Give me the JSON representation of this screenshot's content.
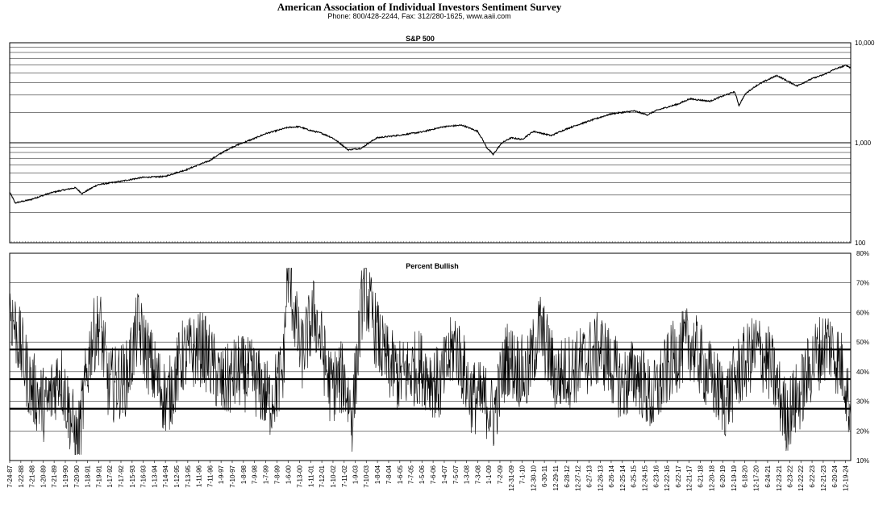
{
  "header": {
    "title": "American Association of Individual Investors Sentiment Survey",
    "subtitle": "Phone: 800/428-2244, Fax: 312/280-1625, www.aaii.com"
  },
  "chart_data": [
    {
      "type": "line",
      "title": "S&P 500",
      "yscale": "log",
      "ylim": [
        100,
        10000
      ],
      "ytick_labels": [
        "10,000",
        "1,000",
        "100"
      ],
      "ytick_values": [
        10000,
        1000,
        100
      ],
      "x_range": [
        "1987-07-24",
        "2025-03-13"
      ],
      "series": [
        {
          "name": "S&P 500",
          "x": [
            1987.56,
            1987.8,
            1988.5,
            1989.5,
            1990.5,
            1990.8,
            1991.5,
            1992.5,
            1993.5,
            1994.5,
            1995.5,
            1996.5,
            1997.5,
            1998.5,
            1999.0,
            1999.5,
            2000.0,
            2000.5,
            2001.0,
            2001.5,
            2002.0,
            2002.7,
            2003.3,
            2004.0,
            2005.0,
            2006.0,
            2007.0,
            2007.8,
            2008.5,
            2008.9,
            2009.2,
            2009.6,
            2010.0,
            2010.5,
            2011.0,
            2011.8,
            2012.5,
            2013.5,
            2014.5,
            2015.5,
            2016.1,
            2016.5,
            2017.5,
            2018.0,
            2018.9,
            2019.5,
            2020.0,
            2020.2,
            2020.5,
            2021.0,
            2021.9,
            2022.4,
            2022.8,
            2023.5,
            2024.0,
            2024.5,
            2025.0,
            2025.2
          ],
          "values": [
            320,
            250,
            270,
            320,
            355,
            310,
            380,
            410,
            450,
            460,
            540,
            660,
            900,
            1100,
            1230,
            1320,
            1420,
            1450,
            1330,
            1250,
            1120,
            850,
            880,
            1120,
            1190,
            1280,
            1450,
            1500,
            1300,
            900,
            760,
            1000,
            1120,
            1080,
            1300,
            1180,
            1380,
            1650,
            1950,
            2080,
            1900,
            2100,
            2450,
            2750,
            2600,
            2950,
            3230,
            2350,
            3100,
            3750,
            4700,
            4100,
            3700,
            4400,
            4800,
            5450,
            5950,
            5600
          ]
        }
      ]
    },
    {
      "type": "line",
      "title": "Percent Bullish",
      "ylim": [
        10,
        80
      ],
      "ytick_labels": [
        "80%",
        "70%",
        "60%",
        "50%",
        "40%",
        "30%",
        "20%",
        "10%"
      ],
      "ytick_values": [
        80,
        70,
        60,
        50,
        40,
        30,
        20,
        10
      ],
      "reference_lines": [
        {
          "name": "upper",
          "value": 47.5
        },
        {
          "name": "average",
          "value": 37.5
        },
        {
          "name": "lower",
          "value": 27.5
        }
      ],
      "x_tick_labels": [
        "7-24-87",
        "1-22-88",
        "7-21-88",
        "1-20-89",
        "7-21-89",
        "1-19-90",
        "7-20-90",
        "1-18-91",
        "7-19-91",
        "1-17-92",
        "7-17-92",
        "1-15-93",
        "7-16-93",
        "1-13-94",
        "7-14-94",
        "1-12-95",
        "7-13-95",
        "1-11-96",
        "7-11-96",
        "1-9-97",
        "7-10-97",
        "1-8-98",
        "7-9-98",
        "1-7-99",
        "7-8-99",
        "1-6-00",
        "7-13-00",
        "1-11-01",
        "7-12-01",
        "1-10-02",
        "7-11-02",
        "1-9-03",
        "7-10-03",
        "1-8-04",
        "7-8-04",
        "1-6-05",
        "7-7-05",
        "1-5-06",
        "7-6-06",
        "1-4-07",
        "7-5-07",
        "1-3-08",
        "7-3-08",
        "1-1-09",
        "7-2-09",
        "12-31-09",
        "7-1-10",
        "12-30-10",
        "6-30-11",
        "12-29-11",
        "6-28-12",
        "12-27-12",
        "6-27-13",
        "12-26-13",
        "6-26-14",
        "12-25-14",
        "6-25-15",
        "12-24-15",
        "6-23-16",
        "12-22-16",
        "6-22-17",
        "12-21-17",
        "6-21-18",
        "12-20-18",
        "6-20-19",
        "12-19-19",
        "6-18-20",
        "12-17-20",
        "6-24-21",
        "12-23-21",
        "6-23-22",
        "12-22-22",
        "6-22-23",
        "12-21-23",
        "6-20-24",
        "12-19-24"
      ],
      "x_tick_values": [
        1987.56,
        1988.06,
        1988.55,
        1989.05,
        1989.55,
        1990.05,
        1990.55,
        1991.05,
        1991.55,
        1992.04,
        1992.54,
        1993.04,
        1993.54,
        1994.03,
        1994.53,
        1995.03,
        1995.53,
        1996.03,
        1996.53,
        1997.02,
        1997.52,
        1998.02,
        1998.52,
        1999.02,
        1999.52,
        2000.02,
        2000.53,
        2001.03,
        2001.53,
        2002.03,
        2002.53,
        2003.02,
        2003.52,
        2004.02,
        2004.52,
        2005.02,
        2005.51,
        2006.01,
        2006.51,
        2007.01,
        2007.51,
        2008.01,
        2008.51,
        2009.0,
        2009.5,
        2010.0,
        2010.5,
        2011.0,
        2011.49,
        2011.99,
        2012.49,
        2012.99,
        2013.49,
        2013.99,
        2014.48,
        2014.98,
        2015.48,
        2015.98,
        2016.48,
        2016.98,
        2017.47,
        2017.97,
        2018.47,
        2018.97,
        2019.47,
        2019.97,
        2020.46,
        2020.96,
        2021.48,
        2021.98,
        2022.47,
        2022.97,
        2023.47,
        2023.97,
        2024.47,
        2024.97
      ],
      "series": [
        {
          "name": "Percent Bullish (weekly)",
          "x": [
            1987.56,
            1988.5,
            1989.2,
            1989.8,
            1990.6,
            1991.2,
            1991.6,
            1992.0,
            1992.8,
            1993.3,
            1994.0,
            1994.6,
            1995.3,
            1996.2,
            1997.1,
            1997.8,
            1998.5,
            1999.2,
            1999.8,
            2000.0,
            2000.6,
            2001.2,
            2001.9,
            2002.5,
            2002.9,
            2003.4,
            2003.9,
            2004.3,
            2005.0,
            2005.9,
            2006.8,
            2007.5,
            2008.2,
            2008.9,
            2009.2,
            2009.8,
            2010.7,
            2011.3,
            2012.0,
            2013.0,
            2014.0,
            2015.0,
            2015.6,
            2016.3,
            2017.3,
            2018.0,
            2018.9,
            2019.6,
            2020.2,
            2021.0,
            2021.6,
            2022.3,
            2022.9,
            2023.6,
            2024.2,
            2024.9,
            2025.2
          ],
          "values": [
            62,
            35,
            28,
            40,
            15,
            50,
            56,
            35,
            38,
            55,
            40,
            30,
            45,
            48,
            35,
            40,
            38,
            30,
            40,
            75,
            45,
            60,
            35,
            38,
            25,
            70,
            55,
            45,
            38,
            42,
            35,
            50,
            32,
            30,
            25,
            45,
            38,
            55,
            38,
            42,
            48,
            35,
            40,
            30,
            45,
            50,
            38,
            30,
            40,
            48,
            42,
            25,
            32,
            45,
            50,
            40,
            25
          ],
          "volatility_range": [
            12,
            75
          ]
        }
      ]
    }
  ]
}
